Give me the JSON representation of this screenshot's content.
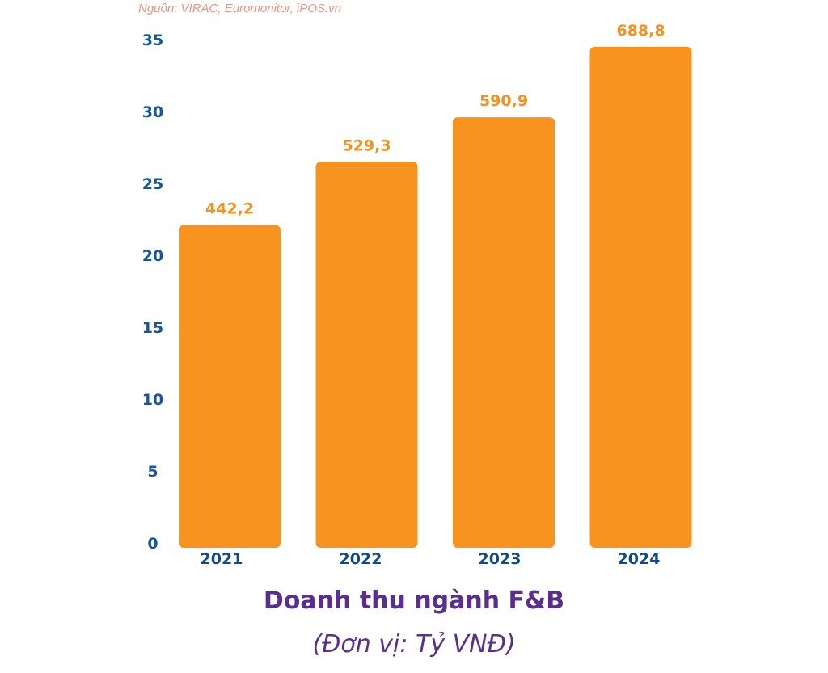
{
  "source_note": "Nguồn: VIRAC, Euromonitor, iPOS.vn",
  "colors": {
    "bar": "#f7931e",
    "axis_text": "#15579c",
    "data_label": "#f3931f",
    "title": "#5b2d8e",
    "source": "#f0907f"
  },
  "chart_data": {
    "type": "bar",
    "title": "Doanh thu ngành F&B",
    "subtitle": "(Đơn vị: Tỷ VNĐ)",
    "xlabel": "",
    "ylabel": "",
    "categories": [
      "2021",
      "2022",
      "2023",
      "2024"
    ],
    "values": [
      22.1,
      26.5,
      29.6,
      34.5
    ],
    "data_labels": [
      "442,2",
      "529,3",
      "590,9",
      "688,8"
    ],
    "yticks": [
      "0",
      "5",
      "10",
      "15",
      "20",
      "25",
      "30",
      "35"
    ],
    "ylim": [
      0,
      35
    ],
    "grid": false,
    "legend": "none"
  }
}
